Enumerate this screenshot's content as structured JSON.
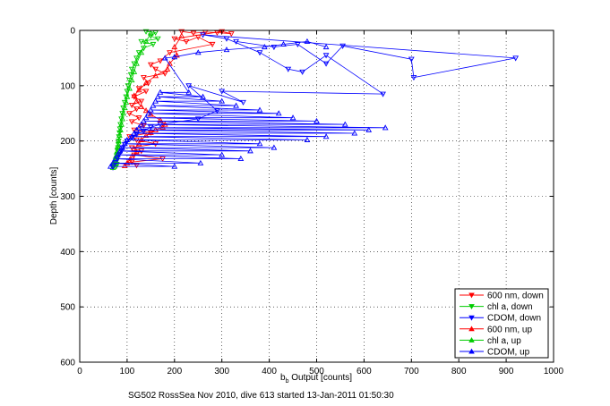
{
  "chart_data": {
    "type": "scatter",
    "xlabel_main": "b",
    "xlabel_sub": "b",
    "xlabel_rest": " Output [counts]",
    "ylabel": "Depth [counts]",
    "caption": "SG502 RossSea Nov 2010, dive 613 started 13-Jan-2011 01:50:30",
    "xlim": [
      0,
      1000
    ],
    "ylim": [
      0,
      600
    ],
    "y_reversed": true,
    "grid": "dotted",
    "legend_position": "bottom-right",
    "xticks": [
      "0",
      "100",
      "200",
      "300",
      "400",
      "500",
      "600",
      "700",
      "800",
      "900",
      "1000"
    ],
    "yticks": [
      "0",
      "100",
      "200",
      "300",
      "400",
      "500",
      "600"
    ],
    "colors": {
      "600nm": "#ff0000",
      "chl": "#00cc00",
      "cdom": "#0000ff"
    },
    "series": [
      {
        "name": "600 nm, down",
        "color": "#ff0000",
        "marker": "tri-down",
        "x": [
          215,
          240,
          265,
          290,
          320,
          300,
          200,
          225,
          250,
          280,
          190,
          170,
          150,
          160,
          180,
          135,
          145,
          125,
          140,
          115,
          130,
          110,
          120,
          105,
          125,
          110,
          135,
          115,
          150,
          105,
          120,
          160,
          110,
          130,
          115,
          175,
          110,
          120
        ],
        "y": [
          2,
          5,
          3,
          4,
          6,
          2,
          15,
          20,
          12,
          25,
          40,
          55,
          62,
          70,
          78,
          85,
          95,
          105,
          110,
          120,
          128,
          135,
          142,
          150,
          158,
          165,
          172,
          180,
          185,
          192,
          198,
          205,
          212,
          218,
          225,
          232,
          238,
          244
        ]
      },
      {
        "name": "chl a, down",
        "color": "#00cc00",
        "marker": "tri-down",
        "x": [
          140,
          160,
          150,
          165,
          130,
          155,
          135,
          125,
          120,
          115,
          110,
          108,
          105,
          102,
          100,
          98,
          95,
          92,
          90,
          88,
          86,
          85,
          84,
          83,
          82,
          82,
          81,
          80,
          80,
          79,
          78,
          78,
          77
        ],
        "y": [
          2,
          4,
          10,
          15,
          20,
          25,
          32,
          40,
          50,
          60,
          70,
          80,
          90,
          100,
          110,
          120,
          130,
          140,
          150,
          160,
          170,
          178,
          185,
          192,
          200,
          206,
          212,
          218,
          224,
          230,
          236,
          242,
          246
        ]
      },
      {
        "name": "CDOM, down",
        "color": "#0000ff",
        "marker": "tri-down",
        "x": [
          330,
          410,
          460,
          520,
          555,
          700,
          705,
          920,
          260,
          310,
          380,
          440,
          470,
          520,
          640,
          300,
          345,
          230,
          290,
          250,
          170,
          150,
          135,
          120,
          110,
          100,
          95,
          90,
          88,
          85,
          82,
          80,
          78,
          76,
          75,
          73,
          72,
          71,
          70
        ],
        "y": [
          20,
          30,
          25,
          60,
          28,
          52,
          85,
          50,
          8,
          15,
          40,
          70,
          75,
          45,
          115,
          110,
          130,
          100,
          145,
          160,
          170,
          175,
          182,
          188,
          194,
          200,
          206,
          212,
          218,
          222,
          226,
          230,
          234,
          238,
          240,
          242,
          244,
          246,
          248
        ]
      },
      {
        "name": "600 nm, up",
        "color": "#ff0000",
        "marker": "tri-up",
        "x": [
          95,
          100,
          105,
          110,
          120,
          115,
          125,
          130,
          140,
          150,
          160,
          175,
          180,
          170,
          150,
          140,
          130,
          120,
          115,
          125,
          140,
          160,
          185,
          190,
          205,
          200,
          215
        ],
        "y": [
          245,
          240,
          235,
          228,
          220,
          214,
          205,
          198,
          190,
          185,
          180,
          175,
          170,
          162,
          152,
          145,
          138,
          128,
          118,
          108,
          95,
          82,
          70,
          60,
          45,
          30,
          10
        ]
      },
      {
        "name": "chl a, up",
        "color": "#00cc00",
        "marker": "tri-up",
        "x": [
          70,
          72,
          74,
          76,
          78,
          80,
          82,
          84,
          86,
          88,
          90,
          92,
          95,
          98,
          100,
          105,
          110,
          115,
          120,
          130,
          140,
          150
        ],
        "y": [
          248,
          242,
          235,
          228,
          220,
          210,
          200,
          190,
          180,
          170,
          160,
          150,
          140,
          130,
          120,
          105,
          90,
          75,
          60,
          40,
          20,
          5
        ]
      },
      {
        "name": "CDOM, up",
        "color": "#0000ff",
        "marker": "tri-up",
        "x": [
          65,
          200,
          70,
          255,
          75,
          340,
          80,
          300,
          85,
          360,
          90,
          410,
          95,
          380,
          100,
          480,
          110,
          520,
          115,
          580,
          120,
          610,
          125,
          645,
          130,
          560,
          135,
          500,
          140,
          450,
          145,
          420,
          150,
          380,
          155,
          330,
          160,
          300,
          165,
          260,
          170,
          230,
          180,
          200,
          250,
          310,
          390,
          430,
          480,
          520
        ],
        "y": [
          246,
          246,
          240,
          240,
          232,
          232,
          225,
          225,
          218,
          218,
          212,
          212,
          205,
          205,
          198,
          198,
          192,
          192,
          186,
          186,
          180,
          180,
          176,
          176,
          170,
          170,
          164,
          164,
          158,
          158,
          150,
          150,
          144,
          144,
          136,
          136,
          128,
          128,
          120,
          120,
          112,
          112,
          50,
          48,
          40,
          35,
          30,
          25,
          20,
          30
        ]
      }
    ],
    "legend": [
      {
        "label": "600 nm, down",
        "color": "#ff0000",
        "marker": "tri-down"
      },
      {
        "label": "chl a, down",
        "color": "#00cc00",
        "marker": "tri-down"
      },
      {
        "label": "CDOM, down",
        "color": "#0000ff",
        "marker": "tri-down"
      },
      {
        "label": "600 nm, up",
        "color": "#ff0000",
        "marker": "tri-up"
      },
      {
        "label": "chl a, up",
        "color": "#00cc00",
        "marker": "tri-up"
      },
      {
        "label": "CDOM, up",
        "color": "#0000ff",
        "marker": "tri-up"
      }
    ]
  }
}
